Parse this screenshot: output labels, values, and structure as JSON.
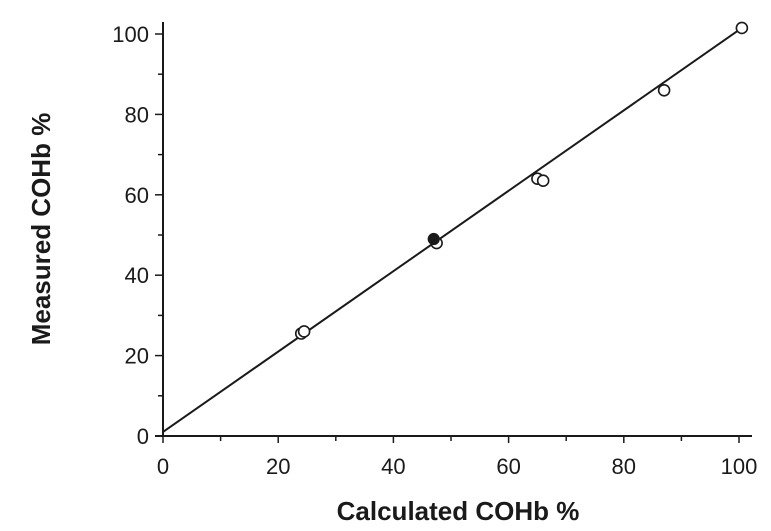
{
  "chart_data": {
    "type": "scatter",
    "title": "",
    "xlabel": "Calculated COHb %",
    "ylabel": "Measured COHb %",
    "xlim": [
      0,
      100
    ],
    "ylim": [
      0,
      100
    ],
    "xticks": [
      0,
      20,
      40,
      60,
      80,
      100
    ],
    "yticks": [
      0,
      20,
      40,
      60,
      80,
      100
    ],
    "grid": false,
    "series": [
      {
        "marker": "open-circle",
        "points": [
          {
            "x": 24.0,
            "y": 25.5
          },
          {
            "x": 24.5,
            "y": 26.0
          },
          {
            "x": 47.5,
            "y": 48.0
          },
          {
            "x": 65.0,
            "y": 64.0
          },
          {
            "x": 66.0,
            "y": 63.5
          },
          {
            "x": 87.0,
            "y": 86.0
          },
          {
            "x": 100.5,
            "y": 101.5
          }
        ]
      },
      {
        "marker": "filled-circle",
        "points": [
          {
            "x": 47.0,
            "y": 49.0
          }
        ]
      }
    ],
    "fit_line": {
      "x": [
        0,
        100
      ],
      "y": [
        1.0,
        101.0
      ]
    }
  }
}
